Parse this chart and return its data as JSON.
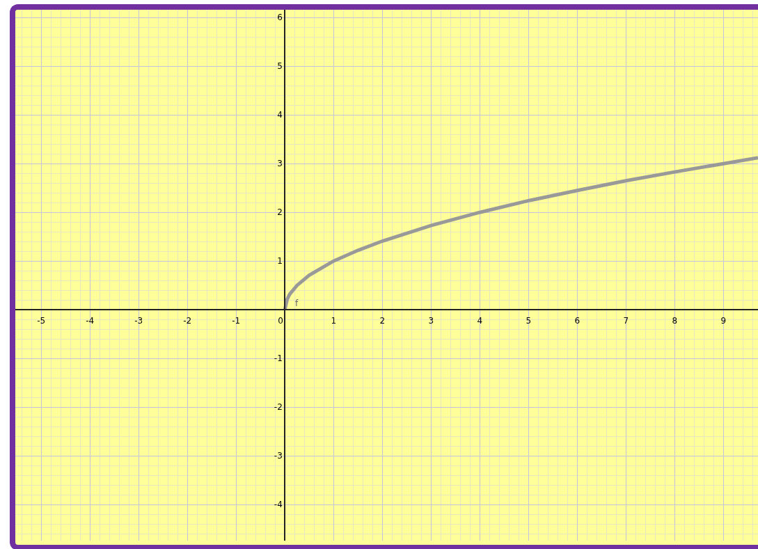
{
  "chart_data": {
    "type": "line",
    "x": [
      0,
      0.05,
      0.1,
      0.25,
      0.5,
      1,
      1.5,
      2,
      3,
      4,
      5,
      6,
      7,
      8,
      9,
      9.71
    ],
    "values": [
      0,
      0.22,
      0.32,
      0.5,
      0.71,
      1,
      1.22,
      1.41,
      1.73,
      2,
      2.24,
      2.45,
      2.65,
      2.83,
      3,
      3.12
    ],
    "color": "#999999",
    "xlim": [
      -5.53,
      9.71
    ],
    "ylim": [
      -4.74,
      6.16
    ],
    "xticks": [
      -5,
      -4,
      -3,
      -2,
      -1,
      0,
      1,
      2,
      3,
      4,
      5,
      6,
      7,
      8,
      9
    ],
    "yticks": [
      -4,
      -3,
      -2,
      -1,
      1,
      2,
      3,
      4,
      5,
      6
    ],
    "grid": true,
    "marker": "none",
    "line_style": "solid",
    "annotations": [
      "f"
    ]
  }
}
